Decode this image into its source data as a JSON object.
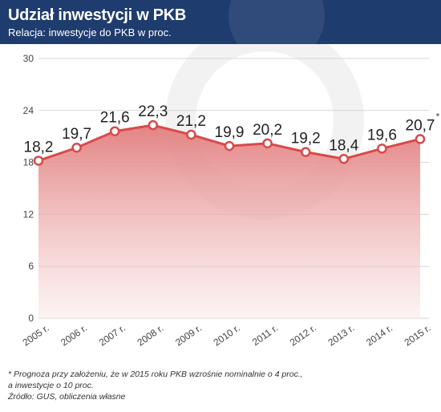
{
  "header": {
    "title": "Udział inwestycji w PKB",
    "subtitle": "Relacja: inwestycje do PKB w proc."
  },
  "colors": {
    "header_bg": "#1f3c6e",
    "line": "#d84a4a",
    "area_top": "#e27c7c",
    "area_bottom": "#fbeaea",
    "grid": "#d5d5d5",
    "marker_fill": "#ffffff"
  },
  "chart_data": {
    "type": "area",
    "title": "Udział inwestycji w PKB",
    "subtitle": "Relacja: inwestycje do PKB w proc.",
    "categories": [
      "2005 r.",
      "2006 r.",
      "2007 r.",
      "2008 r.",
      "2009 r.",
      "2010 r.",
      "2011 r.",
      "2012 r.",
      "2013 r.",
      "2014 r.",
      "2015 r."
    ],
    "values": [
      18.2,
      19.7,
      21.6,
      22.3,
      21.2,
      19.9,
      20.2,
      19.2,
      18.4,
      19.6,
      20.7
    ],
    "data_labels": [
      "18,2",
      "19,7",
      "21,6",
      "22,3",
      "21,2",
      "19,9",
      "20,2",
      "19,2",
      "18,4",
      "19,6",
      "20,7"
    ],
    "last_label_marker": "*",
    "y_ticks": [
      0,
      6,
      12,
      18,
      24,
      30
    ],
    "ylim": [
      0,
      30
    ],
    "grid": true,
    "legend": "none"
  },
  "footnote": {
    "line1": "* Prognoza przy założeniu, że w 2015 roku PKB wzrośnie nominalnie o 4 proc.,",
    "line2": "a inwestycje o 10 proc.",
    "source": "Źródło: GUS, obliczenia własne"
  }
}
